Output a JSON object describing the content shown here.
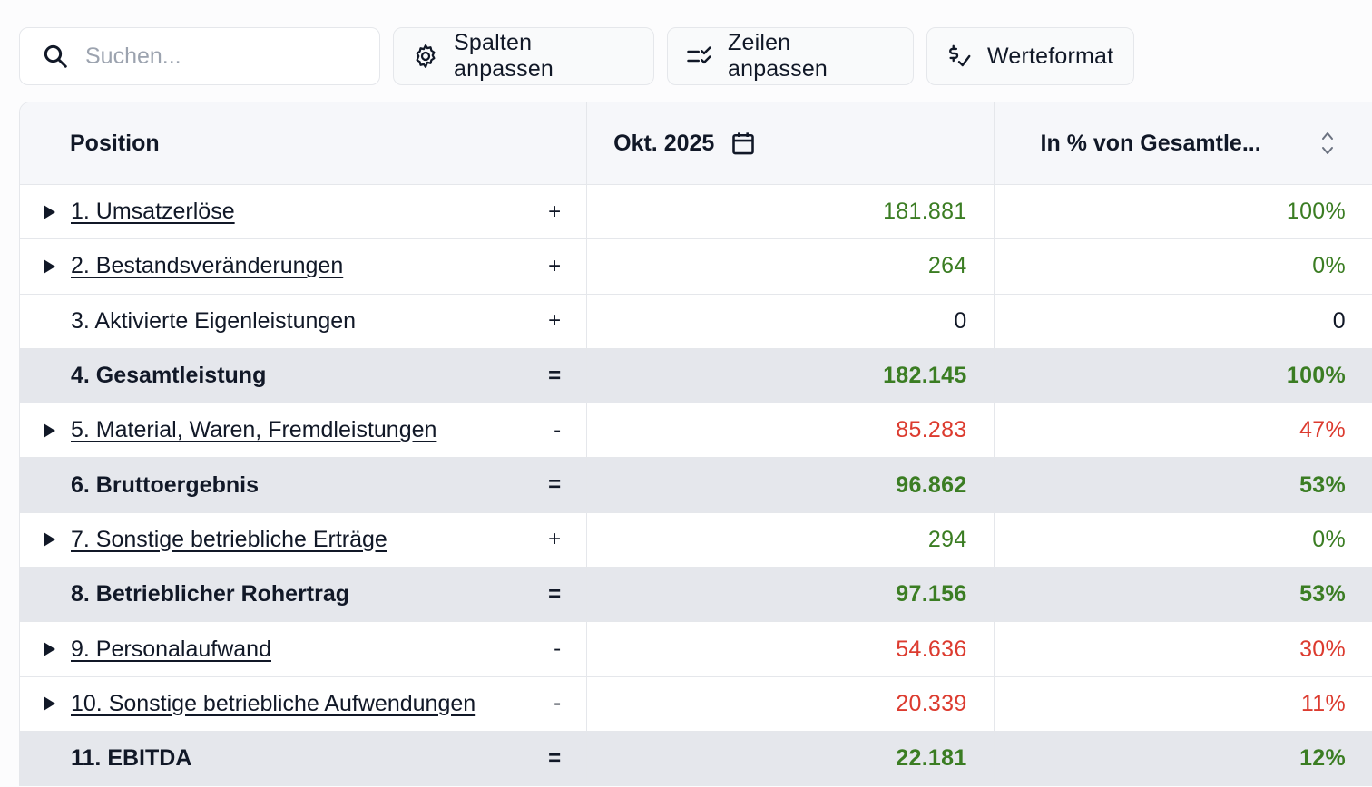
{
  "toolbar": {
    "search_placeholder": "Suchen...",
    "columns_button": "Spalten anpassen",
    "rows_button": "Zeilen anpassen",
    "format_button": "Werteformat"
  },
  "table": {
    "headers": {
      "position": "Position",
      "period": "Okt. 2025",
      "percent": "In % von Gesamtle..."
    },
    "rows": [
      {
        "label": "1. Umsatzerlöse",
        "op": "+",
        "value": "181.881",
        "pct": "100%",
        "expandable": true,
        "sum": false,
        "color": "green"
      },
      {
        "label": "2. Bestandsveränderungen",
        "op": "+",
        "value": "264",
        "pct": "0%",
        "expandable": true,
        "sum": false,
        "color": "green"
      },
      {
        "label": "3. Aktivierte Eigenleistungen",
        "op": "+",
        "value": "0",
        "pct": "0",
        "expandable": false,
        "sum": false,
        "color": "black"
      },
      {
        "label": "4. Gesamtleistung",
        "op": "=",
        "value": "182.145",
        "pct": "100%",
        "expandable": false,
        "sum": true,
        "color": "green"
      },
      {
        "label": "5. Material, Waren, Fremdleistungen",
        "op": "-",
        "value": "85.283",
        "pct": "47%",
        "expandable": true,
        "sum": false,
        "color": "red"
      },
      {
        "label": "6. Bruttoergebnis",
        "op": "=",
        "value": "96.862",
        "pct": "53%",
        "expandable": false,
        "sum": true,
        "color": "green"
      },
      {
        "label": "7. Sonstige betriebliche Erträge",
        "op": "+",
        "value": "294",
        "pct": "0%",
        "expandable": true,
        "sum": false,
        "color": "green"
      },
      {
        "label": "8. Betrieblicher Rohertrag",
        "op": "=",
        "value": "97.156",
        "pct": "53%",
        "expandable": false,
        "sum": true,
        "color": "green"
      },
      {
        "label": "9. Personalaufwand",
        "op": "-",
        "value": "54.636",
        "pct": "30%",
        "expandable": true,
        "sum": false,
        "color": "red"
      },
      {
        "label": "10. Sonstige betriebliche Aufwendungen",
        "op": "-",
        "value": "20.339",
        "pct": "11%",
        "expandable": true,
        "sum": false,
        "color": "red"
      },
      {
        "label": "11. EBITDA",
        "op": "=",
        "value": "22.181",
        "pct": "12%",
        "expandable": false,
        "sum": true,
        "color": "green"
      }
    ]
  },
  "colors": {
    "positive": "#3b7d23",
    "negative": "#dc3b2f",
    "sum_row_bg": "#e5e7ec",
    "header_bg": "#f6f7fa"
  },
  "icons": {
    "search": "search-icon",
    "columns": "gear-icon",
    "rows": "list-check-icon",
    "format": "currency-check-icon",
    "period": "calendar-icon",
    "sort": "sort-icon",
    "expand": "caret-right-icon"
  }
}
